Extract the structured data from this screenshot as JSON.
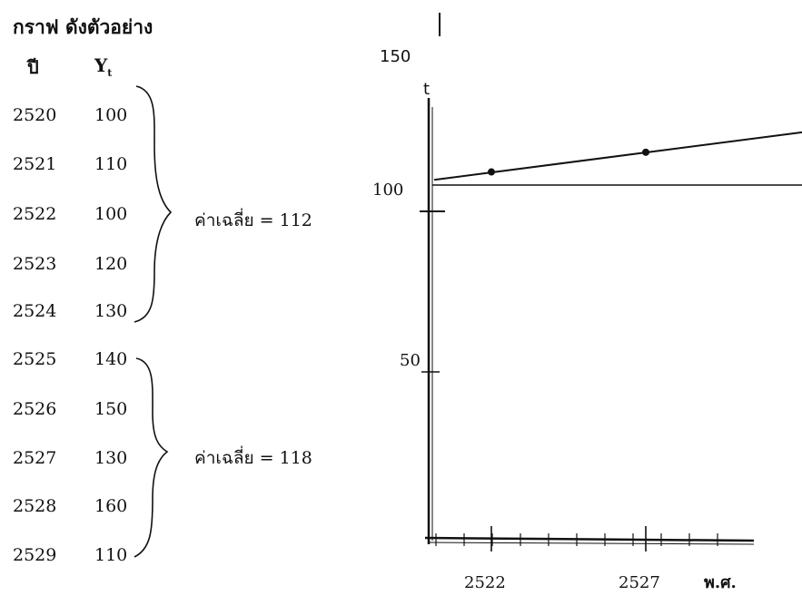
{
  "title": "กราฟ ดังตัวอย่าง",
  "table": {
    "col_year": "ปี",
    "col_value": "Y",
    "col_value_sub": "t",
    "rows": [
      {
        "year": "2520",
        "value": "100"
      },
      {
        "year": "2521",
        "value": "110"
      },
      {
        "year": "2522",
        "value": "100"
      },
      {
        "year": "2523",
        "value": "120"
      },
      {
        "year": "2524",
        "value": "130"
      },
      {
        "year": "2525",
        "value": "140"
      },
      {
        "year": "2526",
        "value": "150"
      },
      {
        "year": "2527",
        "value": "130"
      },
      {
        "year": "2528",
        "value": "160"
      },
      {
        "year": "2529",
        "value": "110"
      }
    ]
  },
  "averages": [
    {
      "label": "ค่าเฉลี่ย",
      "eq": "= 112",
      "value": 112
    },
    {
      "label": "ค่าเฉลี่ย",
      "eq": "= 118",
      "value": 118
    }
  ],
  "chart_data": {
    "type": "line",
    "y_ticks": [
      "150",
      "100",
      "50"
    ],
    "y_axis_mark": "t",
    "x_ticks": [
      "2522",
      "2527"
    ],
    "xlabel": "พ.ศ.",
    "points": [
      {
        "x": 2522,
        "y": 112
      },
      {
        "x": 2527,
        "y": 118
      }
    ]
  }
}
